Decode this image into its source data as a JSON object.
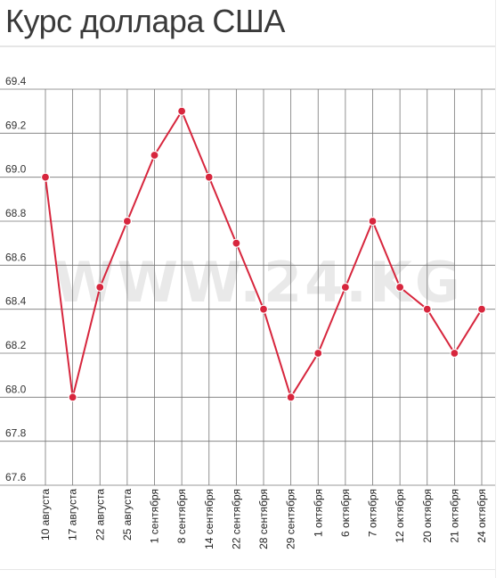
{
  "header": {
    "title": "Курс доллара США"
  },
  "watermark": "WWW.24.KG",
  "colors": {
    "line": "#d7263d",
    "marker": "#d7263d",
    "grid": "#777777"
  },
  "chart_data": {
    "type": "line",
    "title": "Курс доллара США",
    "xlabel": "",
    "ylabel": "",
    "ylim": [
      67.6,
      69.4
    ],
    "yticks": [
      "67.6",
      "67.8",
      "68.0",
      "68.2",
      "68.4",
      "68.6",
      "68.8",
      "69.0",
      "69.2",
      "69.4"
    ],
    "grid": true,
    "categories": [
      "10 августа",
      "17 августа",
      "22 августа",
      "25 августа",
      "1 сентября",
      "8 сентября",
      "14 сентября",
      "22 сентября",
      "28 сентября",
      "29 сентября",
      "1 октября",
      "6 октября",
      "7 октября",
      "12 октября",
      "20 октября",
      "21 октября",
      "24 октября"
    ],
    "series": [
      {
        "values": [
          69.0,
          68.0,
          68.5,
          68.8,
          69.1,
          69.3,
          69.0,
          68.7,
          68.4,
          68.0,
          68.2,
          68.5,
          68.8,
          68.5,
          68.4,
          68.2,
          68.4
        ]
      }
    ]
  }
}
